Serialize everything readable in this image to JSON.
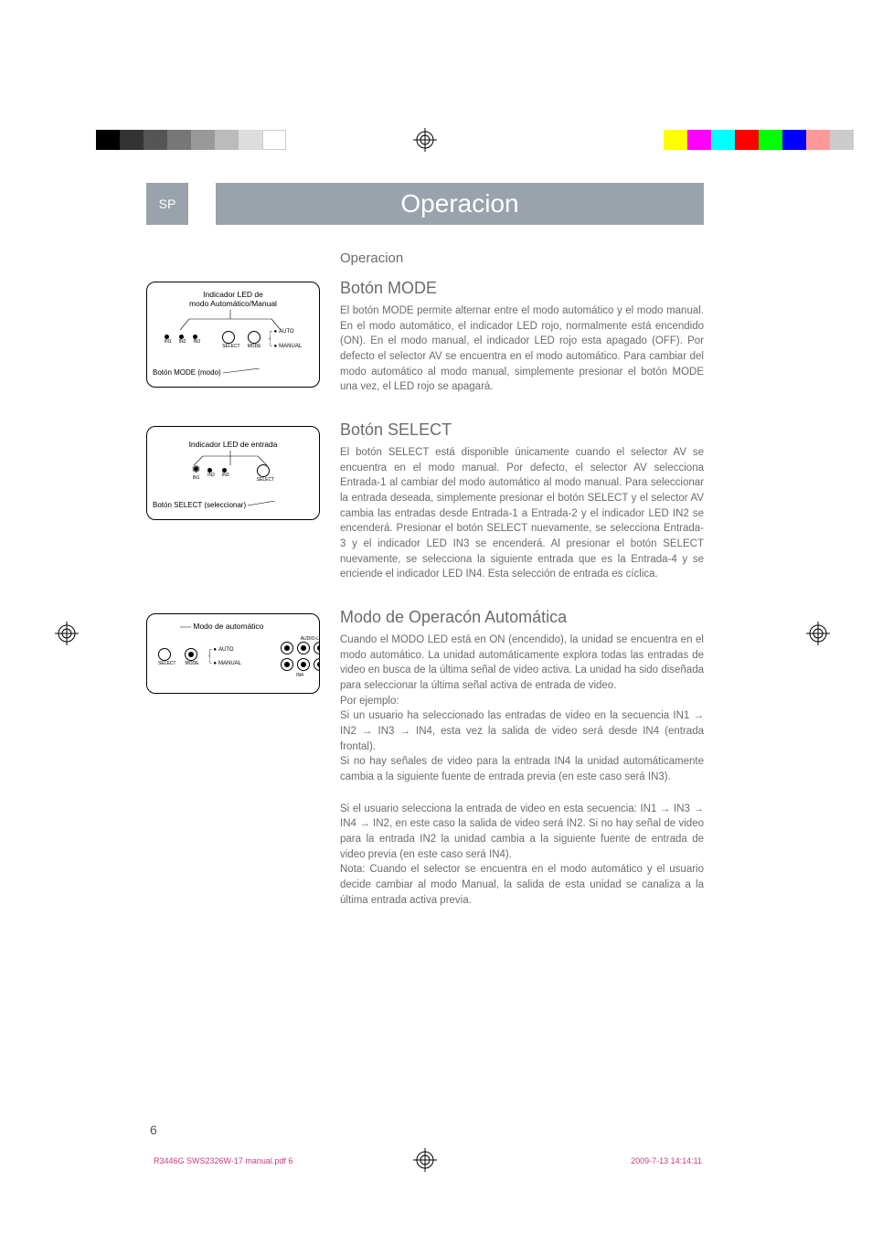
{
  "colorbar_left": [
    "#000000",
    "#333333",
    "#555555",
    "#777777",
    "#999999",
    "#bbbbbb",
    "#dddddd",
    "#ffffff"
  ],
  "colorbar_right": [
    "#ffff00",
    "#ff00ff",
    "#00ffff",
    "#ff0000",
    "#00ff00",
    "#0000ff",
    "#ff9999",
    "#cccccc"
  ],
  "header": {
    "lang": "SP",
    "title": "Operacion",
    "bar_bg": "#9aa3ac"
  },
  "sections": {
    "operacion_heading": "Operacion",
    "mode": {
      "heading": "Botón MODE",
      "body": "El botón MODE permite alternar entre el modo automático y el modo manual.  En el modo automático, el indicador LED rojo, normalmente está encendido (ON).  En el modo manual, el indicador LED rojo esta apagado (OFF).  Por defecto el selector AV se encuentra en el modo automático.  Para cambiar del modo automático al modo manual, simplemente presionar el botón MODE una vez, el LED rojo se apagará.",
      "fig": {
        "label1": "Indicador LED de",
        "label2": "modo Automático/Manual",
        "callout_auto": "AUTO",
        "callout_manual": "MANUAL",
        "in_labels": [
          "IN1",
          "IN2",
          "IN3"
        ],
        "btn_labels": [
          "SELECT",
          "MODE"
        ],
        "bottom_label": "Botón MODE (modo)"
      }
    },
    "select": {
      "heading": "Botón SELECT",
      "body": "El botón SELECT está disponible únicamente cuando el selector AV se encuentra en el modo manual.  Por defecto, el selector AV selecciona Entrada-1 al cambiar del modo automático al modo manual.  Para seleccionar la entrada deseada, simplemente presionar el botón SELECT y el selector AV cambia las entradas desde Entrada-1 a Entrada-2 y el indicador LED IN2 se encenderá. Presionar el botón SELECT nuevamente, se selecciona Entrada-3 y el indicador LED IN3 se encenderá.  Al presionar el botón SELECT nuevamente, se selecciona la siguiente entrada que es la Entrada-4 y se enciende el indicador LED IN4.  Esta selección de entrada es cíclica.",
      "fig": {
        "label1": "Indicador LED de entrada",
        "in_labels": [
          "IN1",
          "IN2",
          "IN3"
        ],
        "btn_label": "SELECT",
        "bottom_label": "Botón SELECT (seleccionar)"
      }
    },
    "auto": {
      "heading": "Modo de Operacón Automática",
      "p1": "Cuando el MODO LED está en ON (encendido), la unidad se encuentra en el modo automático.  La unidad automáticamente explora todas las entradas de video en busca de la última señal de video activa.  La unidad ha sido diseñada para seleccionar la última señal activa de entrada de video.",
      "p2": "Por ejemplo:",
      "p3": "Si un usuario ha seleccionado las entradas de video en la secuencia IN1 → IN2 → IN3 → IN4, esta vez la salida de video será desde IN4 (entrada frontal).",
      "p4": " Si no hay señales de video para la entrada IN4 la unidad automáticamente cambia a la siguiente fuente de entrada previa (en este caso será IN3).",
      "p5": "Si el usuario selecciona la entrada de video en esta secuencia: IN1 → IN3 → IN4 → IN2, en este caso la salida de video será IN2.  Si no hay señal de video para la entrada IN2 la unidad cambia a la siguiente fuente de entrada de video previa (en este caso será IN4).",
      "p6": "Nota: Cuando el selector se encuentra en el modo automático y el usuario decide cambiar al modo Manual, la salida de esta unidad se canaliza a la última entrada activa previa.",
      "fig": {
        "label1": "Modo de automático",
        "callout_auto": "AUTO",
        "callout_manual": "MANUAL",
        "btn_label": "MODE",
        "jack_labels": [
          "AUDIO-L",
          "VIDEO"
        ]
      }
    }
  },
  "page_number": "6",
  "footer": {
    "left": "R3446G SWS2326W-17 manual.pdf   6",
    "right": "2009-7-13   14:14:11",
    "color": "#c93b7f"
  }
}
